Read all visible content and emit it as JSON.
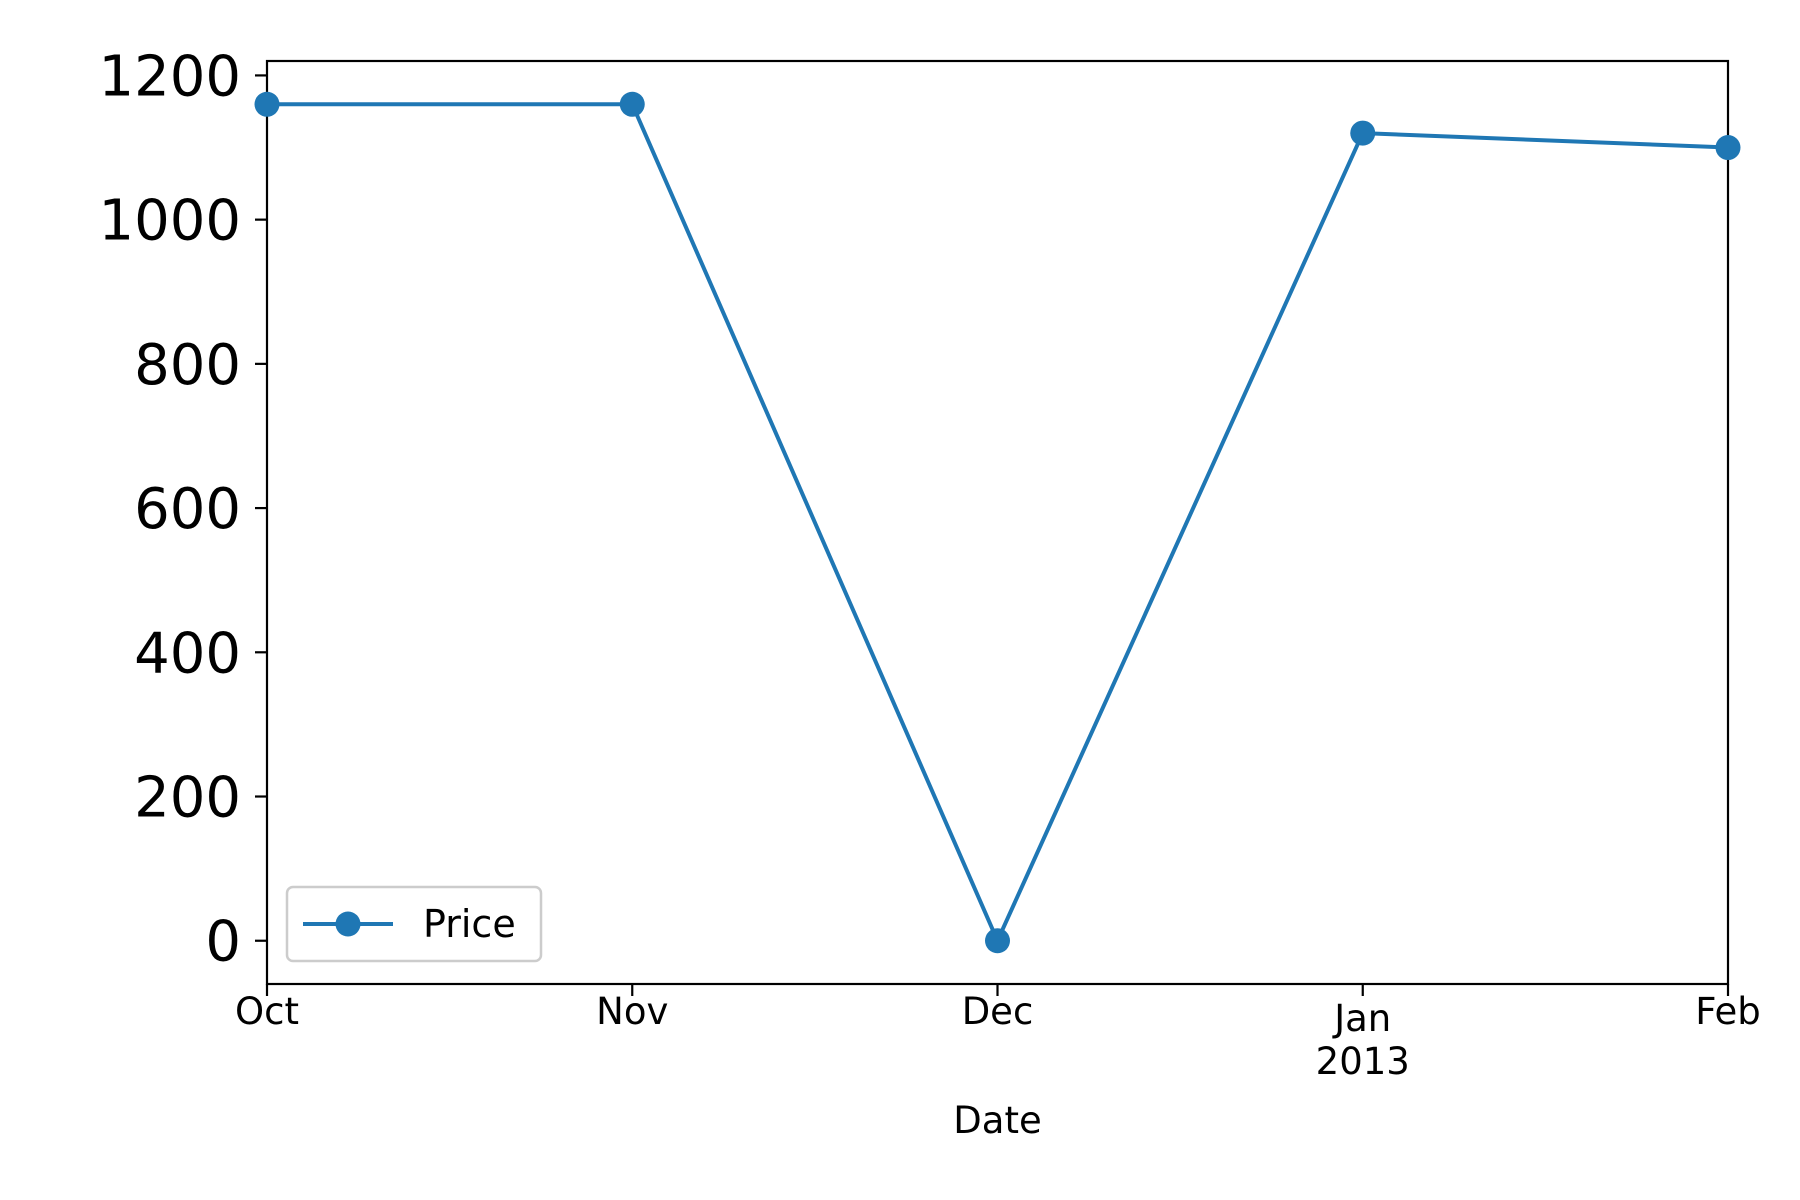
{
  "chart_data": {
    "type": "line",
    "title": "",
    "xlabel": "Date",
    "ylabel": "",
    "x": [
      "2012-10",
      "2012-11",
      "2012-12",
      "2013-01",
      "2013-02"
    ],
    "x_tick_labels": [
      {
        "label": "Oct",
        "sublabel": ""
      },
      {
        "label": "Nov",
        "sublabel": ""
      },
      {
        "label": "Dec",
        "sublabel": ""
      },
      {
        "label": "Jan",
        "sublabel": "2013"
      },
      {
        "label": "Feb",
        "sublabel": ""
      }
    ],
    "series": [
      {
        "name": "Price",
        "values": [
          1160,
          1160,
          0,
          1120,
          1100
        ],
        "color": "#1f77b4",
        "marker": "circle"
      }
    ],
    "ylim": [
      -60,
      1220
    ],
    "yticks": [
      0,
      200,
      400,
      600,
      800,
      1000,
      1200
    ],
    "grid": false,
    "legend_position": "lower-left"
  }
}
